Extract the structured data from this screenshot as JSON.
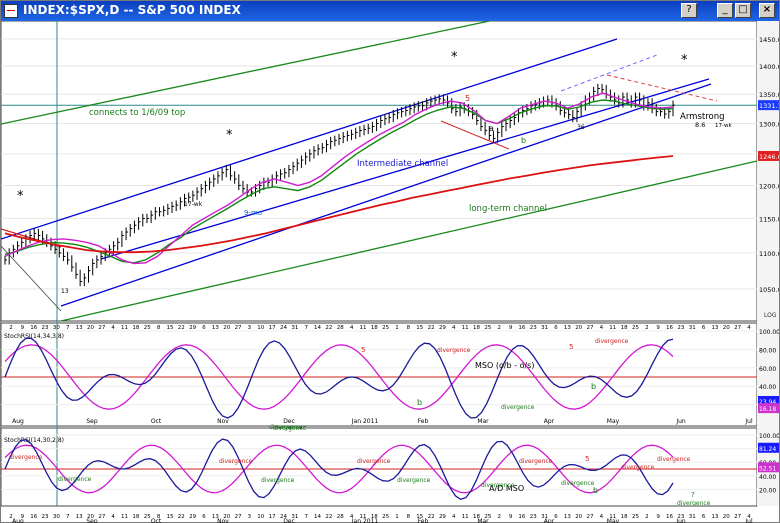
{
  "window": {
    "title": "INDEX:$SPX,D -- S&P 500 INDEX",
    "buttons": [
      "?",
      "_",
      "□",
      "×"
    ]
  },
  "chart_data": [
    {
      "type": "line",
      "title": "INDEX:$SPX,D -- S&P 500 INDEX",
      "scale": "LOG",
      "ylim": [
        1010,
        1480
      ],
      "price_ticks": [
        "1450.00",
        "1400.00",
        "1350.00",
        "1300.00",
        "1250.00",
        "1200.00",
        "1150.00",
        "1100.00",
        "1050.00"
      ],
      "price_tags": [
        {
          "label": "1331.10",
          "value": 1331.1,
          "color": "#1a3cff"
        },
        {
          "label": "1246.60",
          "value": 1246.6,
          "color": "#e02020"
        }
      ],
      "closes": [
        1090,
        1100,
        1105,
        1110,
        1115,
        1120,
        1125,
        1128,
        1125,
        1120,
        1115,
        1110,
        1105,
        1100,
        1095,
        1090,
        1080,
        1070,
        1060,
        1065,
        1075,
        1085,
        1090,
        1095,
        1100,
        1105,
        1110,
        1115,
        1125,
        1130,
        1135,
        1140,
        1145,
        1150,
        1150,
        1155,
        1160,
        1160,
        1162,
        1165,
        1168,
        1170,
        1175,
        1180,
        1182,
        1185,
        1190,
        1195,
        1200,
        1205,
        1210,
        1215,
        1220,
        1225,
        1215,
        1210,
        1200,
        1195,
        1190,
        1190,
        1195,
        1200,
        1205,
        1205,
        1210,
        1215,
        1218,
        1220,
        1225,
        1230,
        1235,
        1240,
        1245,
        1250,
        1255,
        1258,
        1260,
        1265,
        1270,
        1272,
        1275,
        1278,
        1280,
        1282,
        1285,
        1288,
        1290,
        1292,
        1295,
        1300,
        1305,
        1308,
        1310,
        1315,
        1318,
        1320,
        1322,
        1325,
        1328,
        1330,
        1330,
        1335,
        1338,
        1340,
        1342,
        1340,
        1335,
        1325,
        1320,
        1328,
        1325,
        1320,
        1315,
        1305,
        1295,
        1288,
        1280,
        1275,
        1285,
        1295,
        1300,
        1305,
        1310,
        1318,
        1322,
        1325,
        1330,
        1332,
        1335,
        1338,
        1340,
        1335,
        1330,
        1322,
        1318,
        1315,
        1310,
        1320,
        1330,
        1340,
        1345,
        1355,
        1360,
        1358,
        1350,
        1345,
        1340,
        1335,
        1345,
        1340,
        1335,
        1345,
        1340,
        1330,
        1335,
        1325,
        1320,
        1320,
        1316,
        1320,
        1331
      ],
      "ma_magenta": [
        1095,
        1103,
        1110,
        1116,
        1119,
        1120,
        1118,
        1115,
        1110,
        1100,
        1090,
        1085,
        1086,
        1095,
        1110,
        1125,
        1140,
        1150,
        1160,
        1170,
        1182,
        1195,
        1205,
        1210,
        1205,
        1200,
        1205,
        1215,
        1230,
        1245,
        1258,
        1270,
        1282,
        1292,
        1302,
        1315,
        1325,
        1333,
        1338,
        1335,
        1322,
        1305,
        1300,
        1312,
        1326,
        1332,
        1338,
        1335,
        1326,
        1333,
        1345,
        1352,
        1345,
        1338,
        1332,
        1328,
        1326,
        1328
      ],
      "ma_green": [
        1098,
        1102,
        1108,
        1112,
        1115,
        1114,
        1112,
        1108,
        1102,
        1095,
        1088,
        1086,
        1090,
        1100,
        1112,
        1122,
        1135,
        1145,
        1155,
        1165,
        1176,
        1186,
        1195,
        1198,
        1195,
        1192,
        1198,
        1208,
        1222,
        1236,
        1250,
        1262,
        1274,
        1285,
        1295,
        1306,
        1316,
        1323,
        1328,
        1326,
        1318,
        1305,
        1300,
        1308,
        1318,
        1325,
        1330,
        1330,
        1324,
        1328,
        1336,
        1340,
        1338,
        1333,
        1330,
        1326,
        1324,
        1325
      ],
      "ma_red": [
        1128,
        1122,
        1117,
        1112,
        1108,
        1104,
        1102,
        1101,
        1101,
        1102,
        1104,
        1107,
        1110,
        1114,
        1118,
        1123,
        1128,
        1134,
        1140,
        1146,
        1152,
        1158,
        1164,
        1170,
        1175,
        1181,
        1186,
        1191,
        1196,
        1201,
        1206,
        1211,
        1215,
        1220,
        1224,
        1228,
        1232,
        1235,
        1238,
        1241,
        1244,
        1246.6
      ],
      "channels": [
        {
          "name": "Intermediate channel",
          "color": "#0000cc"
        },
        {
          "name": "long-term channel",
          "color": "#0a7a0a"
        }
      ],
      "annotations": [
        "connects to 1/6/09 top",
        "Intermediate channel",
        "long-term channel",
        "Armstrong",
        "8.6",
        "17-wk",
        "13",
        "9-mo",
        "17-wk",
        "*",
        "b",
        "a",
        "36",
        "5"
      ],
      "legend": "LOG"
    },
    {
      "type": "line",
      "title": "StochRSI(14,34,3,8)",
      "ylim": [
        0,
        100
      ],
      "ticks": [
        "100.00",
        "80.00",
        "60.00",
        "40.00",
        "20.00"
      ],
      "tags": [
        {
          "label": "23.94",
          "value": 23.94,
          "color": "#1a1aff"
        },
        {
          "label": "16.18",
          "value": 16.18,
          "color": "#cc33cc"
        }
      ],
      "labels": [
        "MSO (o/b - o/s)",
        "divergence",
        "divergence",
        "divergence",
        "divergence",
        "divergence",
        "5",
        "5",
        "b",
        "b"
      ]
    },
    {
      "type": "line",
      "title": "StochRSI(14,30,2,8)",
      "ylim": [
        0,
        100
      ],
      "ticks": [
        "100.00",
        "80.00",
        "60.00",
        "40.00",
        "20.00"
      ],
      "tags": [
        {
          "label": "81.24",
          "value": 81.24,
          "color": "#1a1aff"
        },
        {
          "label": "52.51",
          "value": 52.51,
          "color": "#cc33cc"
        }
      ],
      "labels": [
        "A/D MSO",
        "divergence",
        "divergence",
        "divergence",
        "divergence",
        "divergence",
        "divergence",
        "divergence",
        "divergence",
        "divergence",
        "divergence",
        "divergence",
        "5",
        "b",
        "?",
        "divergence"
      ]
    }
  ],
  "x_axis": {
    "day_ticks": [
      "2",
      "9",
      "16",
      "23",
      "30",
      "7",
      "13",
      "20",
      "27",
      "4",
      "11",
      "18",
      "25",
      "8",
      "15",
      "22",
      "29",
      "6",
      "13",
      "20",
      "27",
      "3",
      "10",
      "17",
      "24",
      "31",
      "7",
      "14",
      "22",
      "28",
      "4",
      "11",
      "18",
      "25",
      "1",
      "8",
      "15",
      "22",
      "29",
      "4",
      "11",
      "18",
      "25",
      "2",
      "9",
      "16",
      "23",
      "31",
      "6",
      "13",
      "20",
      "27",
      "4",
      "11",
      "18",
      "25",
      "2",
      "9",
      "16",
      "23",
      "31",
      "6",
      "13",
      "20",
      "27",
      "4"
    ],
    "month_ticks": [
      "Aug",
      "Sep",
      "Oct",
      "Nov",
      "Dec",
      "Jan 2011",
      "Feb",
      "Mar",
      "Apr",
      "May",
      "Jun",
      "Jul"
    ]
  }
}
